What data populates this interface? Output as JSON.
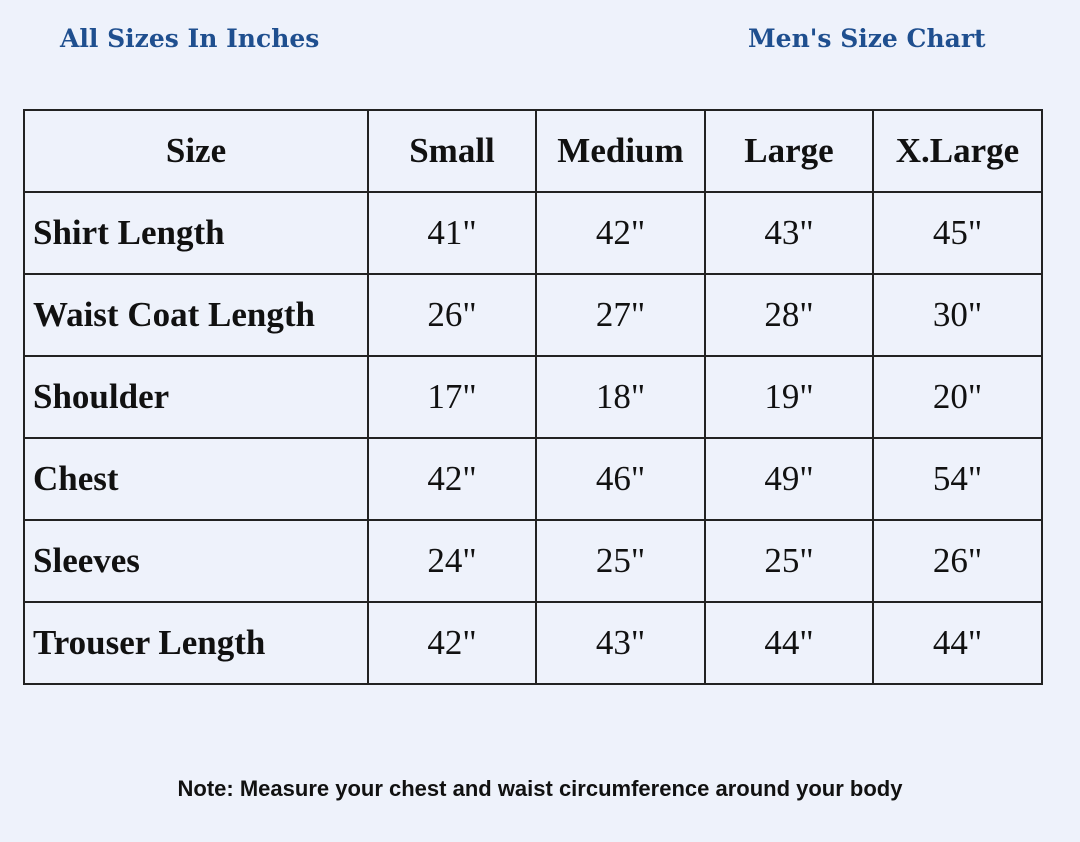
{
  "header": {
    "left": "All Sizes In Inches",
    "right": "Men's Size Chart"
  },
  "table": {
    "columns": [
      "Size",
      "Small",
      "Medium",
      "Large",
      "X.Large"
    ],
    "rows": [
      [
        "Shirt Length",
        "41\"",
        "42\"",
        "43\"",
        "45\""
      ],
      [
        "Waist Coat Length",
        "26\"",
        "27\"",
        "28\"",
        "30\""
      ],
      [
        "Shoulder",
        "17\"",
        "18\"",
        "19\"",
        "20\""
      ],
      [
        "Chest",
        "42\"",
        "46\"",
        "49\"",
        "54\""
      ],
      [
        "Sleeves",
        "24\"",
        "25\"",
        "25\"",
        "26\""
      ],
      [
        "Trouser Length",
        "42\"",
        "43\"",
        "44\"",
        "44\""
      ]
    ]
  },
  "note": "Note: Measure your chest and waist circumference around your body"
}
